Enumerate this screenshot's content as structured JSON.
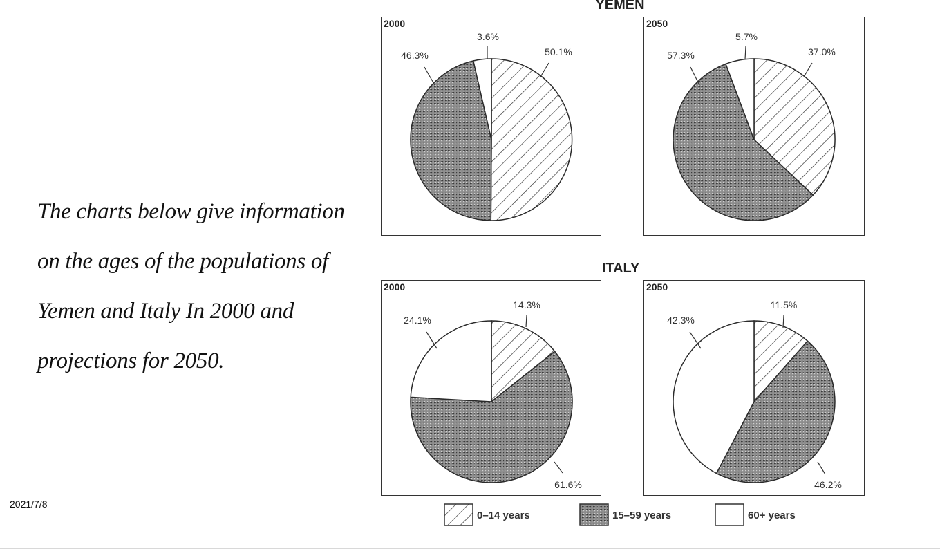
{
  "prompt_lines": [
    "The charts below give information",
    "on the ages of the populations of",
    "Yemen and Italy In 2000 and",
    "projections for 2050."
  ],
  "date": "2021/7/8",
  "legend": [
    {
      "name": "0–14 years",
      "pattern": "hatch"
    },
    {
      "name": "15–59 years",
      "pattern": "dots"
    },
    {
      "name": "60+ years",
      "pattern": "white"
    }
  ],
  "chart_data": [
    {
      "type": "pie",
      "country": "YEMEN",
      "year": "2000",
      "slices": [
        {
          "name": "0–14 years",
          "value": 50.1,
          "label": "50.1%"
        },
        {
          "name": "15–59 years",
          "value": 46.3,
          "label": "46.3%"
        },
        {
          "name": "60+ years",
          "value": 3.6,
          "label": "3.6%"
        }
      ]
    },
    {
      "type": "pie",
      "country": "YEMEN",
      "year": "2050",
      "slices": [
        {
          "name": "0–14 years",
          "value": 37.0,
          "label": "37.0%"
        },
        {
          "name": "15–59 years",
          "value": 57.3,
          "label": "57.3%"
        },
        {
          "name": "60+ years",
          "value": 5.7,
          "label": "5.7%"
        }
      ]
    },
    {
      "type": "pie",
      "country": "ITALY",
      "year": "2000",
      "slices": [
        {
          "name": "0–14 years",
          "value": 14.3,
          "label": "14.3%"
        },
        {
          "name": "15–59 years",
          "value": 61.6,
          "label": "61.6%"
        },
        {
          "name": "60+ years",
          "value": 24.1,
          "label": "24.1%"
        }
      ]
    },
    {
      "type": "pie",
      "country": "ITALY",
      "year": "2050",
      "slices": [
        {
          "name": "0–14 years",
          "value": 11.5,
          "label": "11.5%"
        },
        {
          "name": "15–59 years",
          "value": 46.2,
          "label": "46.2%"
        },
        {
          "name": "60+ years",
          "value": 42.3,
          "label": "42.3%"
        }
      ]
    }
  ]
}
